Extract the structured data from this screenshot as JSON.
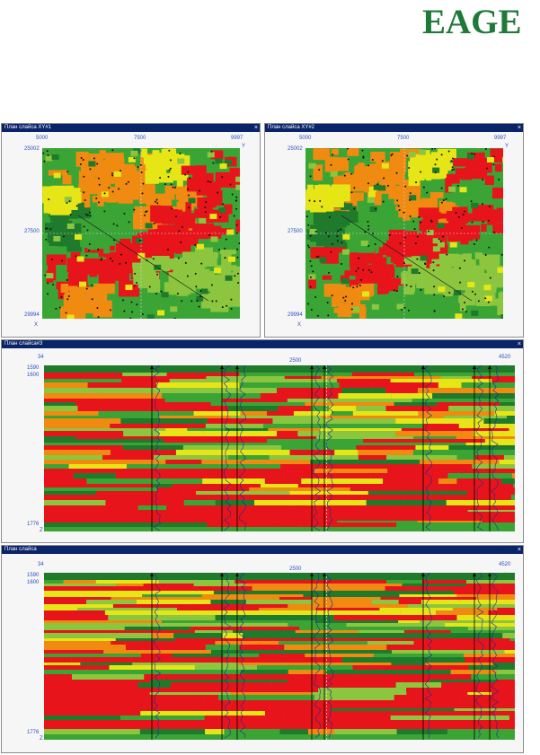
{
  "logo": "EAGE",
  "maps": [
    {
      "title": "План слайса XY#1",
      "x_labels": [
        "5000",
        "7500",
        "9997"
      ],
      "y_labels": [
        "25002",
        "27500",
        "29994"
      ],
      "x_axis": "X",
      "y_axis": "Y"
    },
    {
      "title": "План слайса XY#2",
      "x_labels": [
        "5000",
        "7500",
        "9997"
      ],
      "y_labels": [
        "25002",
        "27500",
        "29994"
      ],
      "x_axis": "X",
      "y_axis": "Y"
    }
  ],
  "sections": [
    {
      "title": "План слайса#3",
      "x_labels": [
        "34",
        "2500",
        "4520"
      ],
      "y_labels": [
        "1590",
        "1600",
        "1776"
      ],
      "bottom_label": "Z",
      "right_label": "L"
    },
    {
      "title": "План слайса",
      "x_labels": [
        "34",
        "2500",
        "4520"
      ],
      "y_labels": [
        "1590",
        "1600",
        "1776"
      ],
      "bottom_label": "Z",
      "right_label": "L"
    }
  ],
  "colors": {
    "red": "#e8141b",
    "orange": "#f08a10",
    "yellow": "#e6e617",
    "light_green": "#8cc63e",
    "green": "#3aa535",
    "dark_green": "#1f7a2c",
    "title_bar": "#0a246a",
    "logo": "#1f7a3a"
  },
  "icons": {
    "close": "×"
  }
}
